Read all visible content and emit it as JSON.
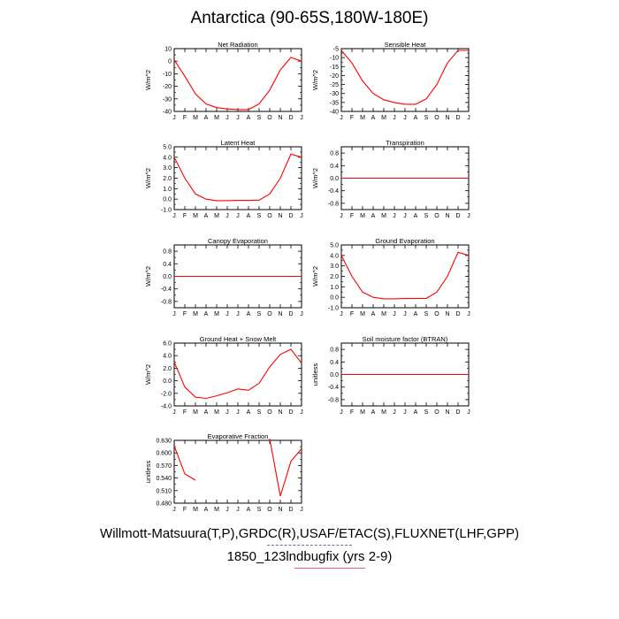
{
  "title": "Antarctica (90-65S,180W-180E)",
  "footer": {
    "line1": "Willmott-Matsuura(T,P),GRDC(R),USAF/ETAC(S),FLUXNET(LHF,GPP)",
    "line2": "1850_123lndbugfix (yrs 2-9)"
  },
  "colors": {
    "series": "#ff0000",
    "axis": "#000000"
  },
  "chart_data": [
    {
      "type": "line",
      "title": "Net Radiation",
      "ylabel": "W/m^2",
      "x": [
        "J",
        "F",
        "M",
        "A",
        "M",
        "J",
        "J",
        "A",
        "S",
        "O",
        "N",
        "D",
        "J"
      ],
      "ylim": [
        -40,
        10
      ],
      "yticks": [
        10,
        0,
        -10,
        -20,
        -30,
        -40
      ],
      "yticklabels": [
        "10",
        "0",
        "-10",
        "-20",
        "-30",
        "-40"
      ],
      "series": [
        {
          "values": [
            1,
            -12,
            -26,
            -34,
            -37,
            -38,
            -38.5,
            -38.5,
            -34,
            -23,
            -7,
            3,
            0
          ]
        }
      ]
    },
    {
      "type": "line",
      "title": "Sensible Heat",
      "ylabel": "W/m^2",
      "x": [
        "J",
        "F",
        "M",
        "A",
        "M",
        "J",
        "J",
        "A",
        "S",
        "O",
        "N",
        "D",
        "J"
      ],
      "ylim": [
        -40,
        -5
      ],
      "yticks": [
        -5,
        -10,
        -15,
        -20,
        -25,
        -30,
        -35,
        -40
      ],
      "yticklabels": [
        "-5",
        "-10",
        "-15",
        "-20",
        "-25",
        "-30",
        "-35",
        "-40"
      ],
      "series": [
        {
          "values": [
            -6,
            -13,
            -23,
            -30,
            -33.5,
            -35,
            -36,
            -36,
            -33,
            -25,
            -13,
            -6,
            -6
          ]
        }
      ]
    },
    {
      "type": "line",
      "title": "Latent Heat",
      "ylabel": "W/m^2",
      "x": [
        "J",
        "F",
        "M",
        "A",
        "M",
        "J",
        "J",
        "A",
        "S",
        "O",
        "N",
        "D",
        "J"
      ],
      "ylim": [
        -1.0,
        5.0
      ],
      "yticks": [
        5,
        4,
        3,
        2,
        1,
        0,
        -1
      ],
      "yticklabels": [
        "5.0",
        "4.0",
        "3.0",
        "2.0",
        "1.0",
        "0.0",
        "-1.0"
      ],
      "series": [
        {
          "values": [
            4.0,
            2.0,
            0.5,
            0.0,
            -0.15,
            -0.15,
            -0.12,
            -0.12,
            -0.1,
            0.5,
            2.0,
            4.3,
            4.0
          ]
        }
      ]
    },
    {
      "type": "line",
      "title": "Transpiration",
      "ylabel": "W/m^2",
      "x": [
        "J",
        "F",
        "M",
        "A",
        "M",
        "J",
        "J",
        "A",
        "S",
        "O",
        "N",
        "D",
        "J"
      ],
      "ylim": [
        -1.0,
        1.0
      ],
      "yticks": [
        0.8,
        0.4,
        0,
        -0.4,
        -0.8
      ],
      "yticklabels": [
        "0.8",
        "0.4",
        "0.0",
        "-0.4",
        "-0.8"
      ],
      "series": [
        {
          "values": [
            0,
            0,
            0,
            0,
            0,
            0,
            0,
            0,
            0,
            0,
            0,
            0,
            0
          ]
        }
      ]
    },
    {
      "type": "line",
      "title": "Canopy Evaporation",
      "ylabel": "W/m^2",
      "x": [
        "J",
        "F",
        "M",
        "A",
        "M",
        "J",
        "J",
        "A",
        "S",
        "O",
        "N",
        "D",
        "J"
      ],
      "ylim": [
        -1.0,
        1.0
      ],
      "yticks": [
        0.8,
        0.4,
        0,
        -0.4,
        -0.8
      ],
      "yticklabels": [
        "0.8",
        "0.4",
        "0.0",
        "-0.4",
        "-0.8"
      ],
      "series": [
        {
          "values": [
            0,
            0,
            0,
            0,
            0,
            0,
            0,
            0,
            0,
            0,
            0,
            0,
            0
          ]
        }
      ]
    },
    {
      "type": "line",
      "title": "Ground Evaporation",
      "ylabel": "W/m^2",
      "x": [
        "J",
        "F",
        "M",
        "A",
        "M",
        "J",
        "J",
        "A",
        "S",
        "O",
        "N",
        "D",
        "J"
      ],
      "ylim": [
        -1.0,
        5.0
      ],
      "yticks": [
        5,
        4,
        3,
        2,
        1,
        0,
        -1
      ],
      "yticklabels": [
        "5.0",
        "4.0",
        "3.0",
        "2.0",
        "1.0",
        "0.0",
        "-1.0"
      ],
      "series": [
        {
          "values": [
            4.0,
            2.0,
            0.5,
            0.0,
            -0.15,
            -0.15,
            -0.12,
            -0.12,
            -0.1,
            0.5,
            2.0,
            4.3,
            4.0
          ]
        }
      ]
    },
    {
      "type": "line",
      "title": "Ground Heat + Snow Melt",
      "ylabel": "W/m^2",
      "x": [
        "J",
        "F",
        "M",
        "A",
        "M",
        "J",
        "J",
        "A",
        "S",
        "O",
        "N",
        "D",
        "J"
      ],
      "ylim": [
        -4.0,
        6.0
      ],
      "yticks": [
        6,
        4,
        2,
        0,
        -2,
        -4
      ],
      "yticklabels": [
        "6.0",
        "4.0",
        "2.0",
        "0.0",
        "-2.0",
        "-4.0"
      ],
      "series": [
        {
          "values": [
            3.0,
            -1.0,
            -2.6,
            -2.8,
            -2.4,
            -1.9,
            -1.3,
            -1.5,
            -0.4,
            2.2,
            4.2,
            5.0,
            2.8
          ]
        }
      ]
    },
    {
      "type": "line",
      "title": "Soil moisture factor (BTRAN)",
      "ylabel": "unitless",
      "x": [
        "J",
        "F",
        "M",
        "A",
        "M",
        "J",
        "J",
        "A",
        "S",
        "O",
        "N",
        "D",
        "J"
      ],
      "ylim": [
        -1.0,
        1.0
      ],
      "yticks": [
        0.8,
        0.4,
        0,
        -0.4,
        -0.8
      ],
      "yticklabels": [
        "0.8",
        "0.4",
        "0.0",
        "-0.4",
        "-0.8"
      ],
      "series": [
        {
          "values": [
            0,
            0,
            0,
            0,
            0,
            0,
            0,
            0,
            0,
            0,
            0,
            0,
            0
          ]
        }
      ]
    },
    {
      "type": "line",
      "title": "Evaporative Fraction",
      "ylabel": "unitless",
      "x": [
        "J",
        "F",
        "M",
        "A",
        "M",
        "J",
        "J",
        "A",
        "S",
        "O",
        "N",
        "D",
        "J"
      ],
      "ylim": [
        0.48,
        0.63
      ],
      "yticks": [
        0.63,
        0.6,
        0.57,
        0.54,
        0.51,
        0.48
      ],
      "yticklabels": [
        "0.630",
        "0.600",
        "0.570",
        "0.540",
        "0.510",
        "0.480"
      ],
      "series": [
        {
          "values": [
            0.617,
            0.55,
            0.535,
            null,
            null,
            null,
            null,
            null,
            null,
            0.634,
            0.497,
            0.58,
            0.61
          ]
        }
      ]
    }
  ]
}
